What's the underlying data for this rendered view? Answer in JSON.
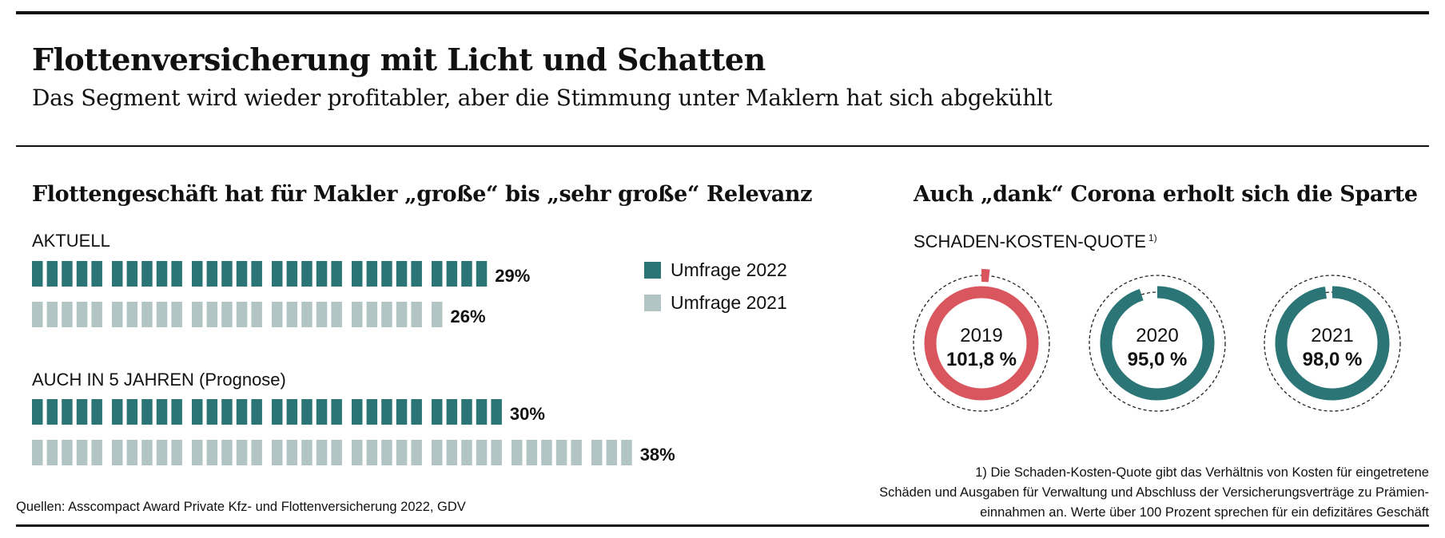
{
  "header": {
    "title": "Flottenversicherung mit Licht und Schatten",
    "subtitle": "Das Segment wird wieder profitabler, aber die Stimmung unter Maklern hat sich abgekühlt"
  },
  "colors": {
    "teal": "#2b7576",
    "light": "#b3c4c4",
    "red": "#d9565f",
    "text": "#111111"
  },
  "chart_data": [
    {
      "type": "bar",
      "title": "Flottengeschäft hat für Makler „große“ bis „sehr große“ Relevanz",
      "unit": "%",
      "legend": [
        "Umfrage 2022",
        "Umfrage 2021"
      ],
      "legend_position": "right",
      "groups": [
        {
          "label": "AKTUELL",
          "values": [
            29,
            26
          ],
          "value_labels": [
            "29%",
            "26%"
          ]
        },
        {
          "label": "AUCH IN 5 JAHREN (Prognose)",
          "values": [
            30,
            38
          ],
          "value_labels": [
            "30%",
            "38%"
          ]
        }
      ]
    },
    {
      "type": "pie",
      "title": "Auch „dank“ Corona erholt sich die Sparte",
      "subtitle": "SCHADEN-KOSTEN-QUOTE",
      "subtitle_footnote_mark": "1)",
      "unit": "%",
      "items": [
        {
          "year": "2019",
          "value": 101.8,
          "label": "101,8 %",
          "color": "red"
        },
        {
          "year": "2020",
          "value": 95.0,
          "label": "95,0 %",
          "color": "teal"
        },
        {
          "year": "2021",
          "value": 98.0,
          "label": "98,0 %",
          "color": "teal"
        }
      ]
    }
  ],
  "footnote": {
    "lines": [
      "1) Die Schaden-Kosten-Quote gibt das Verhältnis von Kosten für eingetretene",
      "Schäden und Ausgaben für Verwaltung und Abschluss der Versicherungsverträge zu Prämien-",
      "einnahmen an. Werte über 100 Prozent sprechen für ein defizitäres Geschäft"
    ]
  },
  "source": "Quellen: Asscompact Award Private Kfz- und Flottenversicherung 2022, GDV"
}
